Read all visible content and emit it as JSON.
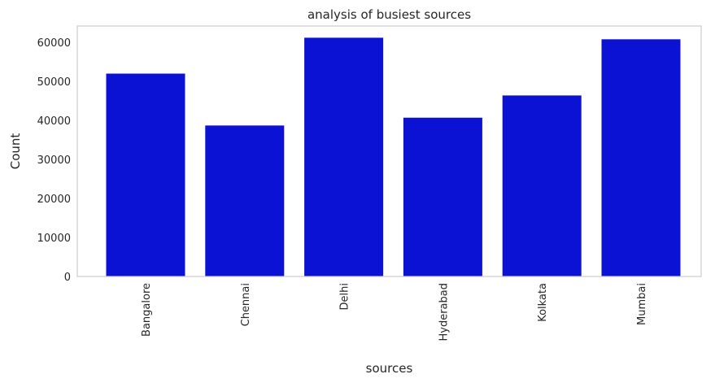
{
  "chart_data": {
    "type": "bar",
    "title": "analysis of busiest sources",
    "xlabel": "sources",
    "ylabel": "Count",
    "categories": [
      "Bangalore",
      "Chennai",
      "Delhi",
      "Hyderabad",
      "Kolkata",
      "Mumbai"
    ],
    "values": [
      52000,
      38700,
      61200,
      40700,
      46400,
      60800
    ],
    "ylim": [
      0,
      64200
    ],
    "yticks": [
      "0",
      "10000",
      "20000",
      "30000",
      "40000",
      "50000",
      "60000"
    ],
    "bar_color": "#0c12d4",
    "grid": false,
    "x_tick_rotation": "vertical"
  }
}
